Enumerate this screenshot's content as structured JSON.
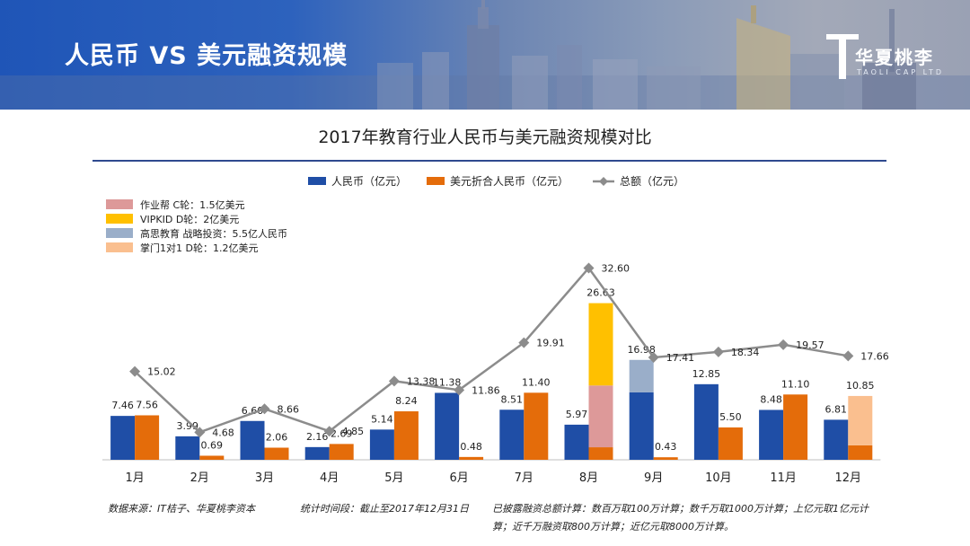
{
  "header": {
    "title": "人民币 VS 美元融资规模",
    "logo_name": "华夏桃李",
    "logo_subtitle": "TAOLI CAP LTD"
  },
  "colors": {
    "rmb": "#1f4ea6",
    "usd": "#e46c0a",
    "total": "#8c8c8c",
    "zuoyebang": "#dd9999",
    "vipkid": "#ffc000",
    "gaosi": "#9aaec9",
    "zhangmen": "#fabf8f"
  },
  "chart_data": {
    "type": "bar",
    "title": "2017年教育行业人民币与美元融资规模对比",
    "categories": [
      "1月",
      "2月",
      "3月",
      "4月",
      "5月",
      "6月",
      "7月",
      "8月",
      "9月",
      "10月",
      "11月",
      "12月"
    ],
    "series": [
      {
        "name": "人民币（亿元）",
        "values": [
          7.46,
          3.99,
          6.6,
          2.16,
          5.14,
          11.38,
          8.51,
          5.97,
          16.98,
          12.85,
          8.48,
          6.81
        ],
        "labels": [
          "7.46",
          "3.99",
          "6.60",
          "2.16",
          "5.14",
          "11.38",
          "8.51",
          "5.97",
          "16.98",
          "12.85",
          "8.48",
          "6.81"
        ]
      },
      {
        "name": "美元折合人民币（亿元）",
        "values": [
          7.56,
          0.69,
          2.06,
          2.69,
          8.24,
          0.48,
          11.4,
          26.63,
          0.43,
          5.5,
          11.1,
          10.85
        ],
        "labels": [
          "7.56",
          "0.69",
          "2.06",
          "2.69",
          "8.24",
          "0.48",
          "11.40",
          "26.63",
          "0.43",
          "5.50",
          "11.10",
          "10.85"
        ]
      },
      {
        "name": "总额（亿元）",
        "values": [
          15.02,
          4.68,
          8.66,
          4.85,
          13.38,
          11.86,
          19.91,
          32.6,
          17.41,
          18.34,
          19.57,
          17.66
        ],
        "labels": [
          "15.02",
          "4.68",
          "8.66",
          "4.85",
          "13.38",
          "11.86",
          "19.91",
          "32.60",
          "17.41",
          "18.34",
          "19.57",
          "17.66"
        ]
      }
    ],
    "stacked_segments": [
      {
        "name": "作业帮 C轮：1.5亿美元",
        "month": "8月",
        "series": "美元折合人民币（亿元）",
        "value": 10.5
      },
      {
        "name": "VIPKID D轮：2亿美元",
        "month": "8月",
        "series": "美元折合人民币（亿元）",
        "value": 14.0
      },
      {
        "name": "高思教育 战略投资：5.5亿人民币",
        "month": "9月",
        "series": "人民币（亿元）",
        "value": 5.5
      },
      {
        "name": "掌门1对1 D轮：1.2亿美元",
        "month": "12月",
        "series": "美元折合人民币（亿元）",
        "value": 8.4
      }
    ],
    "legend": [
      "人民币（亿元）",
      "美元折合人民币（亿元）",
      "总额（亿元）"
    ],
    "annotation_legend": [
      "作业帮 C轮：1.5亿美元",
      "VIPKID D轮：2亿美元",
      "高思教育 战略投资：5.5亿人民币",
      "掌门1对1 D轮：1.2亿美元"
    ],
    "ylim": [
      0,
      35
    ],
    "grid": false,
    "legend_position": "top-center"
  },
  "footnotes": {
    "source": "数据来源：IT桔子、华夏桃李资本",
    "period": "统计时间段：截止至2017年12月31日",
    "method_line1": "已披露融资总额计算：数百万取100万计算；数千万取1000万计算；上亿元取1亿元计",
    "method_line2": "算；近千万融资取800万计算；近亿元取8000万计算。"
  }
}
